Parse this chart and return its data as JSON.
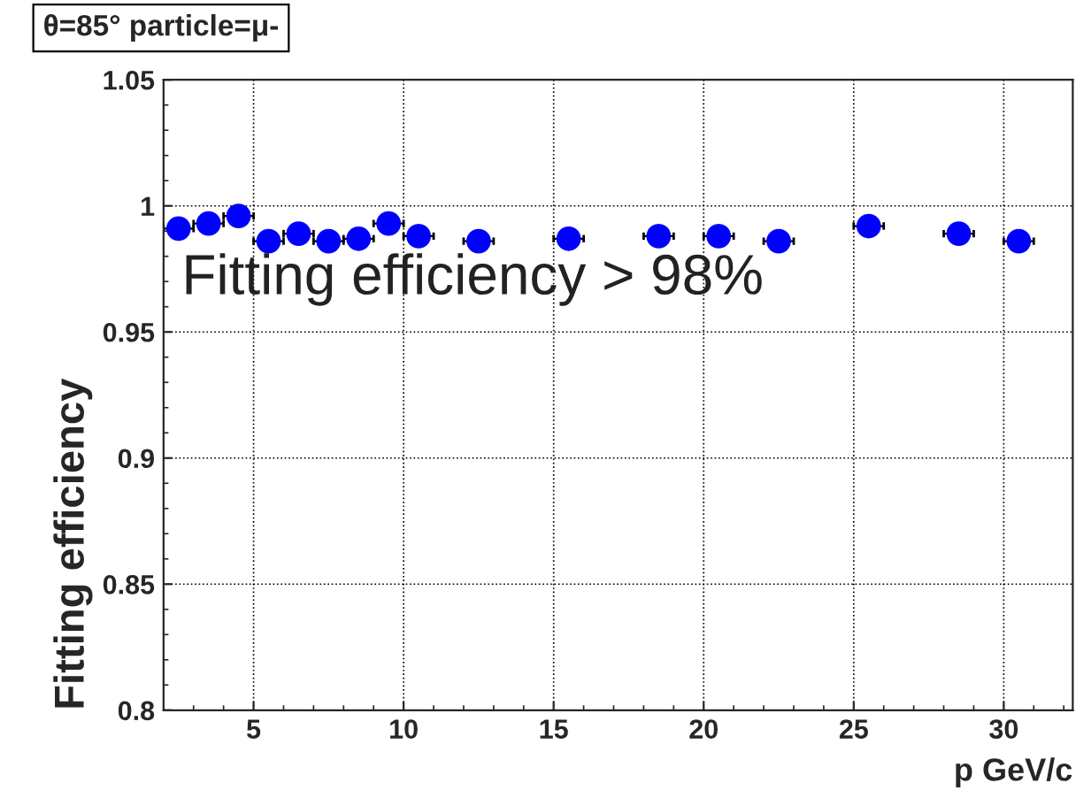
{
  "chart_data": {
    "type": "scatter",
    "title": "θ=85° particle=μ-",
    "xlabel": "p GeV/c",
    "ylabel": "Fitting efficiency",
    "annotations": [
      "Fitting efficiency > 98%"
    ],
    "x": [
      2.5,
      3.5,
      4.5,
      5.5,
      6.5,
      7.5,
      8.5,
      9.5,
      10.5,
      12.5,
      15.5,
      18.5,
      20.5,
      22.5,
      25.5,
      28.5,
      30.5
    ],
    "series": [
      {
        "color": "#0000ff",
        "values": [
          0.991,
          0.993,
          0.996,
          0.986,
          0.989,
          0.986,
          0.987,
          0.993,
          0.988,
          0.986,
          0.987,
          0.988,
          0.988,
          0.986,
          0.992,
          0.989,
          0.986
        ],
        "xerrors": [
          0.5,
          0.5,
          0.5,
          0.5,
          0.5,
          0.5,
          0.5,
          0.5,
          0.5,
          0.5,
          0.5,
          0.5,
          0.5,
          0.5,
          0.5,
          0.5,
          0.5
        ]
      }
    ],
    "xlim": [
      2,
      32.3
    ],
    "xticks": [
      5,
      10,
      15,
      20,
      25,
      30
    ],
    "ylim": [
      0.8,
      1.05
    ],
    "yticks": [
      0.8,
      0.85,
      0.9,
      0.95,
      1,
      1.05
    ],
    "grid": true,
    "marker": "circle",
    "legend": false
  }
}
